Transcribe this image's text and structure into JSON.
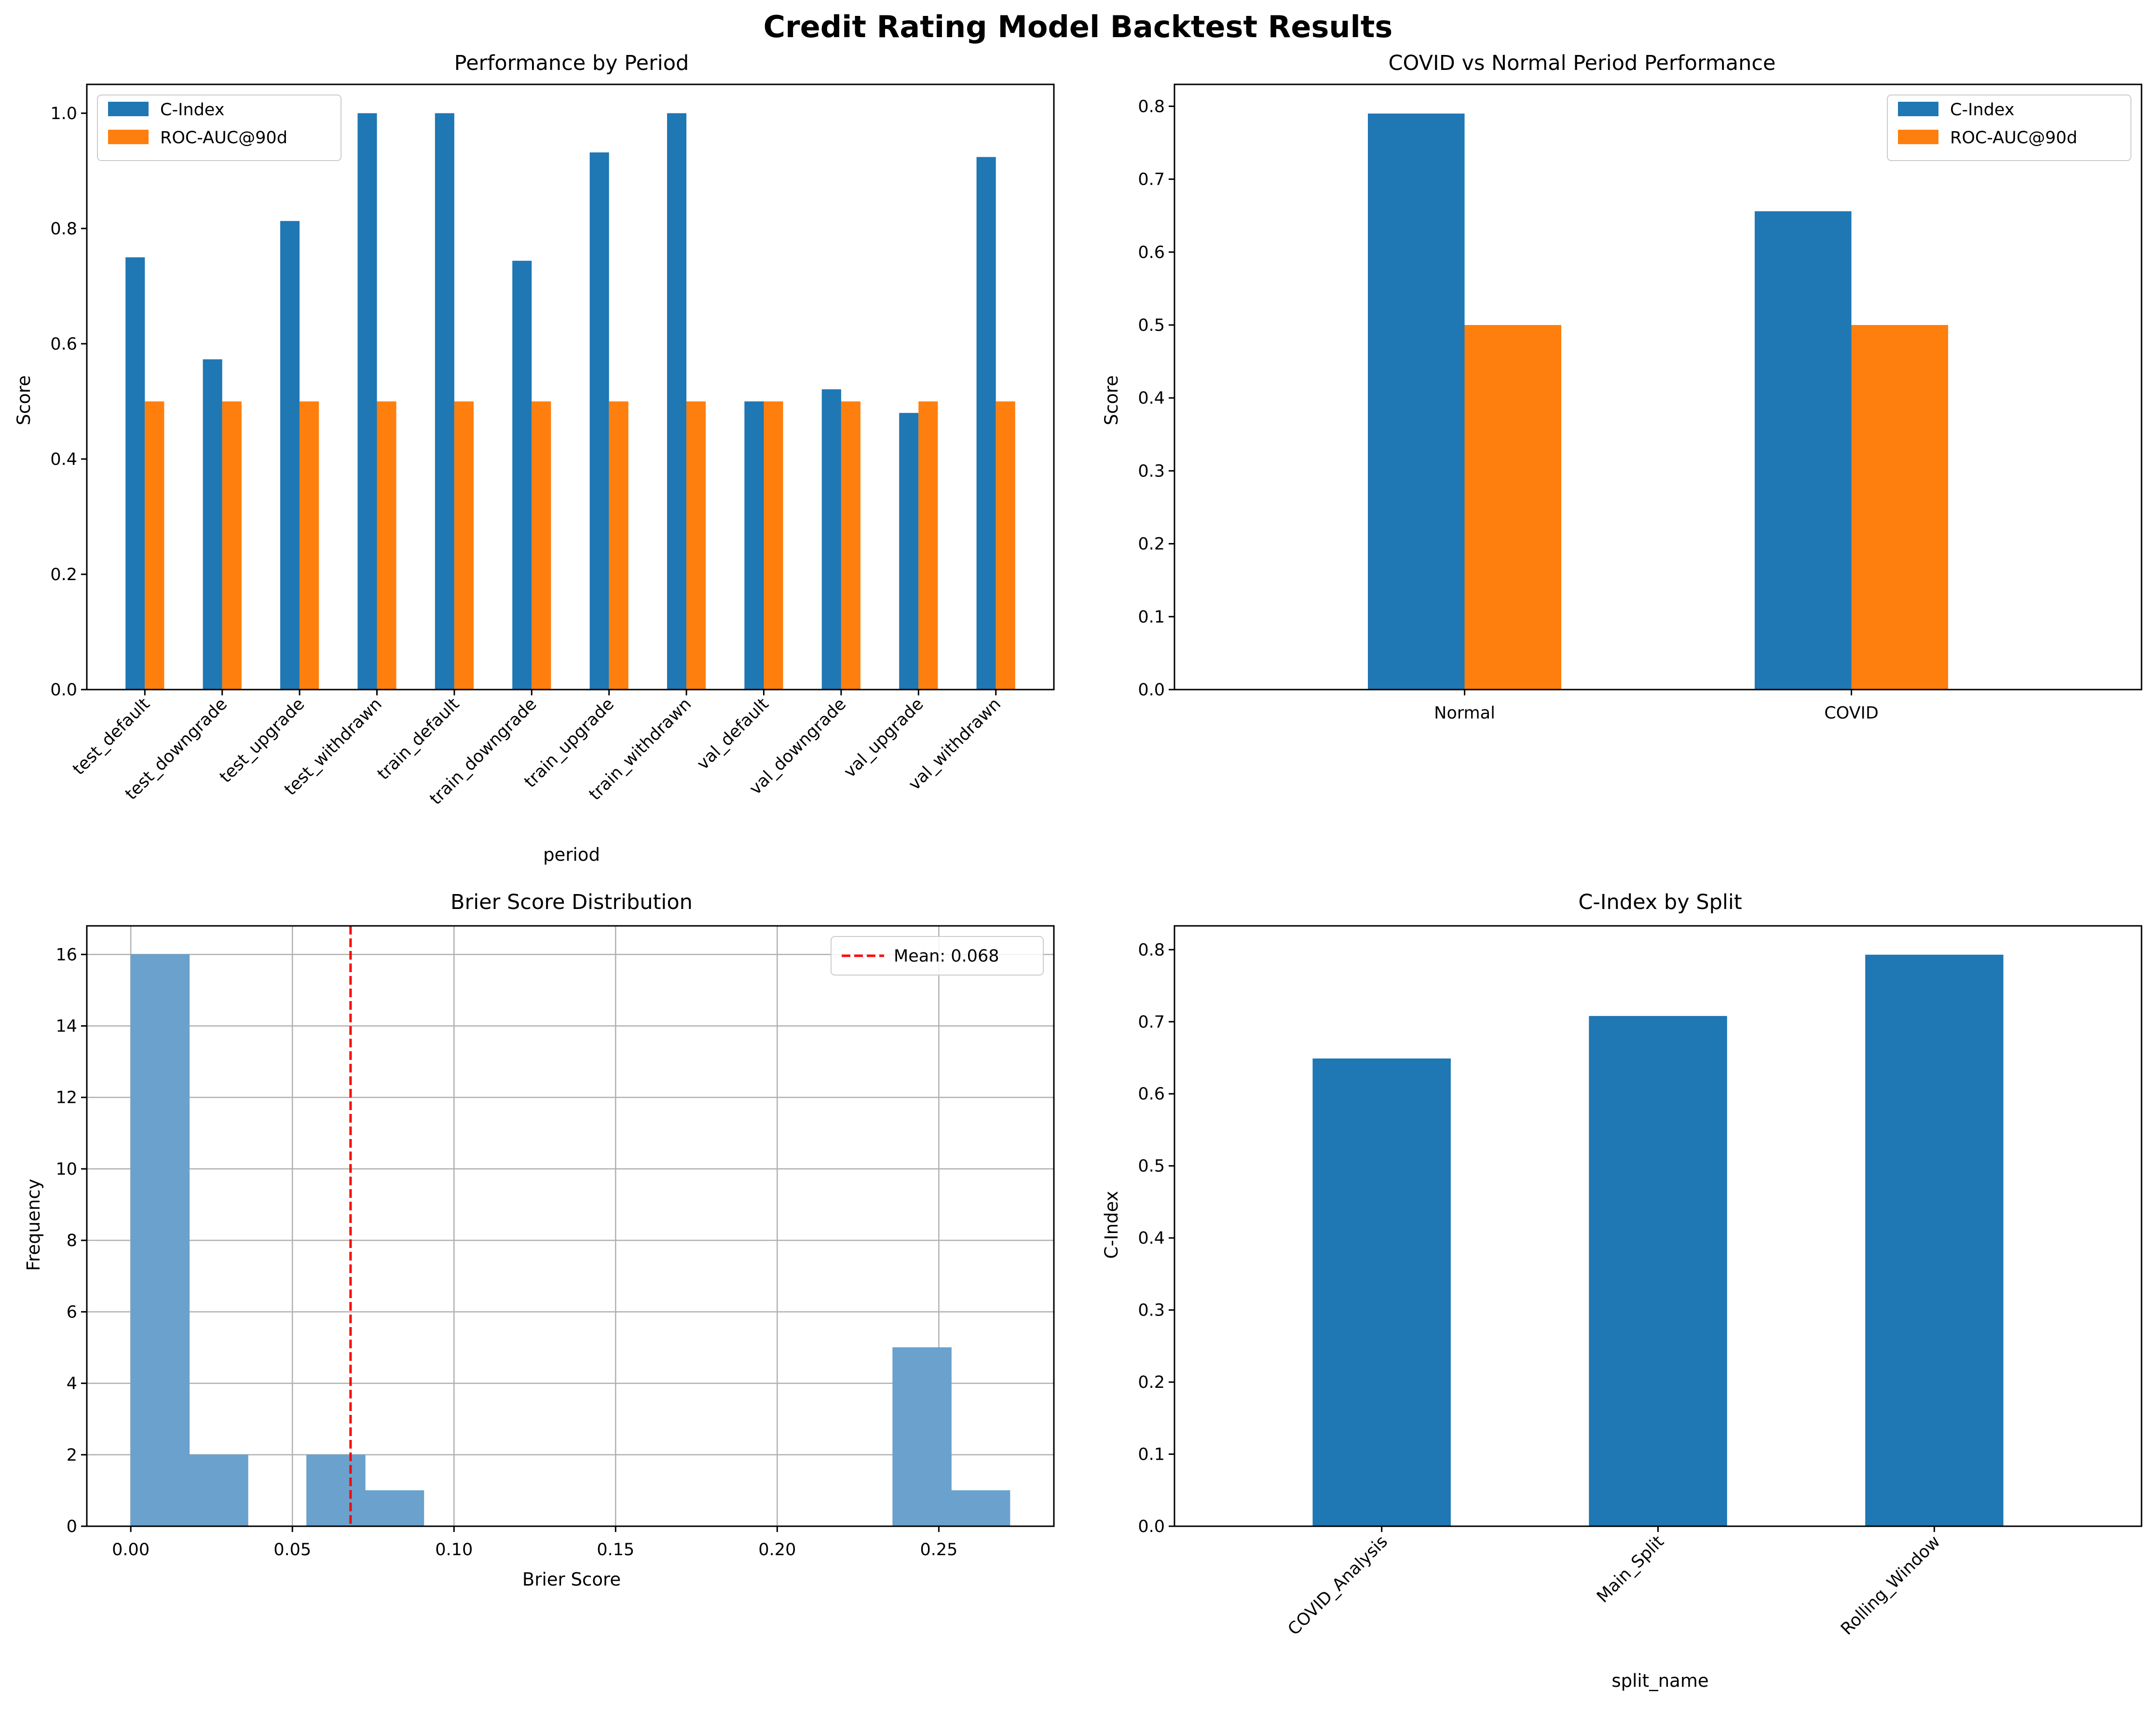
{
  "figure": {
    "suptitle": "Credit Rating Model Backtest Results",
    "colors": {
      "c_index": "#1f77b4",
      "roc_auc": "#ff7f0e",
      "hist": "#6aa1cd",
      "mean_line": "#ff0000",
      "grid": "#b0b0b0"
    }
  },
  "chart_data": [
    {
      "type": "bar",
      "title": "Performance by Period",
      "xlabel": "period",
      "ylabel": "Score",
      "ylim": [
        0,
        1.05
      ],
      "yticks": [
        0.0,
        0.2,
        0.4,
        0.6,
        0.8,
        1.0
      ],
      "ytick_labels": [
        "0.0",
        "0.2",
        "0.4",
        "0.6",
        "0.8",
        "1.0"
      ],
      "legend_position": "upper-left",
      "grid": false,
      "categories": [
        "test_default",
        "test_downgrade",
        "test_upgrade",
        "test_withdrawn",
        "train_default",
        "train_downgrade",
        "train_upgrade",
        "train_withdrawn",
        "val_default",
        "val_downgrade",
        "val_upgrade",
        "val_withdrawn"
      ],
      "series": [
        {
          "name": "C-Index",
          "color": "#1f77b4",
          "values": [
            0.75,
            0.573,
            0.813,
            1.0,
            1.0,
            0.744,
            0.932,
            1.0,
            0.5,
            0.521,
            0.48,
            0.924
          ]
        },
        {
          "name": "ROC-AUC@90d",
          "color": "#ff7f0e",
          "values": [
            0.5,
            0.5,
            0.5,
            0.5,
            0.5,
            0.5,
            0.5,
            0.5,
            0.5,
            0.5,
            0.5,
            0.5
          ]
        }
      ]
    },
    {
      "type": "bar",
      "title": "COVID vs Normal Period Performance",
      "xlabel": "",
      "ylabel": "Score",
      "ylim": [
        0,
        0.83
      ],
      "yticks": [
        0.0,
        0.1,
        0.2,
        0.3,
        0.4,
        0.5,
        0.6,
        0.7,
        0.8
      ],
      "ytick_labels": [
        "0.0",
        "0.1",
        "0.2",
        "0.3",
        "0.4",
        "0.5",
        "0.6",
        "0.7",
        "0.8"
      ],
      "legend_position": "upper-right",
      "grid": false,
      "categories": [
        "Normal",
        "COVID"
      ],
      "series": [
        {
          "name": "C-Index",
          "color": "#1f77b4",
          "values": [
            0.79,
            0.656
          ]
        },
        {
          "name": "ROC-AUC@90d",
          "color": "#ff7f0e",
          "values": [
            0.5,
            0.5
          ]
        }
      ]
    },
    {
      "type": "histogram",
      "title": "Brier Score Distribution",
      "xlabel": "Brier Score",
      "ylabel": "Frequency",
      "xlim": [
        -0.0136,
        0.2856
      ],
      "ylim": [
        0,
        16.8
      ],
      "xticks": [
        0.0,
        0.05,
        0.1,
        0.15,
        0.2,
        0.25
      ],
      "xtick_labels": [
        "0.00",
        "0.05",
        "0.10",
        "0.15",
        "0.20",
        "0.25"
      ],
      "yticks": [
        0,
        2,
        4,
        6,
        8,
        10,
        12,
        14,
        16
      ],
      "ytick_labels": [
        "0",
        "2",
        "4",
        "6",
        "8",
        "10",
        "12",
        "14",
        "16"
      ],
      "grid": true,
      "legend_position": "upper-right",
      "bin_edges": [
        0.0,
        0.01813,
        0.03627,
        0.0544,
        0.07253,
        0.09067,
        0.1088,
        0.12693,
        0.14507,
        0.1632,
        0.18133,
        0.19947,
        0.2176,
        0.23573,
        0.25387,
        0.272
      ],
      "counts": [
        16,
        2,
        0,
        2,
        1,
        0,
        0,
        0,
        0,
        0,
        0,
        0,
        0,
        5,
        1
      ],
      "mean": 0.068,
      "mean_label": "Mean: 0.068"
    },
    {
      "type": "bar",
      "title": "C-Index by Split",
      "xlabel": "split_name",
      "ylabel": "C-Index",
      "ylim": [
        0,
        0.833
      ],
      "yticks": [
        0.0,
        0.1,
        0.2,
        0.3,
        0.4,
        0.5,
        0.6,
        0.7,
        0.8
      ],
      "ytick_labels": [
        "0.0",
        "0.1",
        "0.2",
        "0.3",
        "0.4",
        "0.5",
        "0.6",
        "0.7",
        "0.8"
      ],
      "grid": false,
      "categories": [
        "COVID_Analysis",
        "Main_Split",
        "Rolling_Window"
      ],
      "values": [
        0.649,
        0.708,
        0.793
      ],
      "color": "#1f77b4"
    }
  ]
}
